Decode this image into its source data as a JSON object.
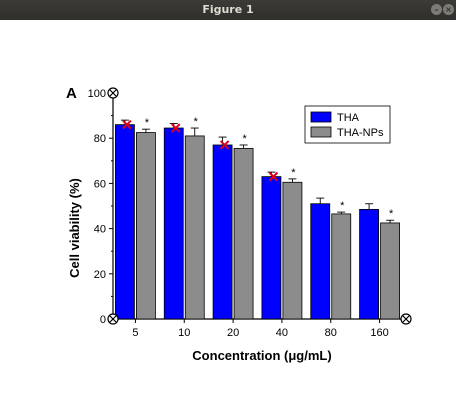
{
  "window": {
    "title": "Figure 1",
    "minimize_icon": "minimize-icon",
    "close_icon": "close-icon"
  },
  "chart_data": {
    "type": "bar",
    "panel_label": "A",
    "xlabel": "Concentration (μg/mL)",
    "ylabel": "Cell viability (%)",
    "ylim": [
      0,
      100
    ],
    "yticks": [
      0,
      20,
      40,
      60,
      80,
      100
    ],
    "categories": [
      "5",
      "10",
      "20",
      "40",
      "80",
      "160"
    ],
    "legend_position": "top-right",
    "significance_marker": "*",
    "series": [
      {
        "name": "THA",
        "color": "#0000ff",
        "values": [
          86,
          84.5,
          77,
          63,
          51,
          48.5
        ],
        "errors": [
          2,
          2,
          3.5,
          2,
          2.5,
          2.5
        ]
      },
      {
        "name": "THA-NPs",
        "color": "#8c8c8c",
        "values": [
          82.5,
          81,
          75.5,
          60.5,
          46.5,
          42.5
        ],
        "errors": [
          1.5,
          3.5,
          1.5,
          1.5,
          0.8,
          1.2
        ]
      }
    ],
    "significant": [
      true,
      true,
      true,
      true,
      true,
      true
    ],
    "cross_markers": [
      86,
      84.5,
      77,
      63
    ],
    "cross_color": "#e0001b"
  }
}
